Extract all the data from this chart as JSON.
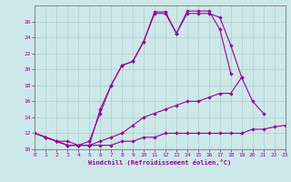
{
  "xlabel": "Windchill (Refroidissement éolien,°C)",
  "x_values": [
    0,
    1,
    2,
    3,
    4,
    5,
    6,
    7,
    8,
    9,
    10,
    11,
    12,
    13,
    14,
    15,
    16,
    17,
    18,
    19,
    20,
    21,
    22,
    23
  ],
  "curve1": [
    12,
    11.5,
    11,
    10.5,
    10.5,
    10.5,
    10.5,
    10.5,
    11,
    11,
    11.5,
    11.5,
    12,
    12,
    12,
    12,
    12,
    12,
    12,
    12,
    12.5,
    12.5,
    12.8,
    13
  ],
  "curve2": [
    12,
    11.5,
    11,
    10.5,
    10.5,
    10.5,
    11,
    11.5,
    12,
    13,
    14,
    14.5,
    15,
    15.5,
    16,
    16,
    16.5,
    17,
    17,
    19,
    16,
    14.5,
    null,
    null
  ],
  "curve3": [
    12,
    11.5,
    11,
    10.5,
    10.5,
    11,
    14.5,
    18,
    20.5,
    21,
    23.5,
    27,
    27,
    24.5,
    27,
    27,
    27,
    26.5,
    23,
    19,
    null,
    null,
    null,
    null
  ],
  "curve4": [
    12,
    11.5,
    11,
    11,
    10.5,
    10.5,
    15,
    18,
    20.5,
    21,
    23.5,
    27.2,
    27.2,
    24.5,
    27.3,
    27.3,
    27.3,
    25,
    19.5,
    null,
    null,
    null,
    null,
    null
  ],
  "line_color": "#990099",
  "bg_color": "#cce8e8",
  "grid_color": "#b0cccc",
  "ylim": [
    10,
    28
  ],
  "yticks": [
    10,
    12,
    14,
    16,
    18,
    20,
    22,
    24,
    26
  ],
  "xlim": [
    0,
    23
  ]
}
